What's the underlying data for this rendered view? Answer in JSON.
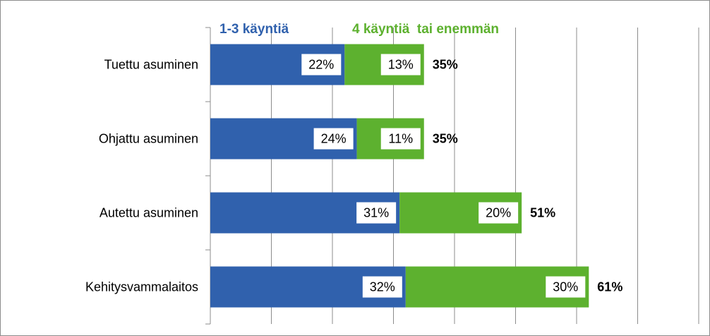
{
  "chart_data": {
    "type": "bar",
    "orientation": "horizontal",
    "stacked": true,
    "categories": [
      "Tuettu asuminen",
      "Ohjattu asuminen",
      "Autettu asuminen",
      "Kehitysvammalaitos"
    ],
    "series": [
      {
        "name": "1-3 käyntiä",
        "values": [
          22,
          24,
          31,
          32
        ],
        "labels": [
          "22%",
          "24%",
          "31%",
          "32%"
        ],
        "color": "#3061ad"
      },
      {
        "name": "4 käyntiä  tai enemmän",
        "values": [
          13,
          11,
          20,
          30
        ],
        "labels": [
          "13%",
          "11%",
          "20%",
          "30%"
        ],
        "color": "#5db12f"
      }
    ],
    "totals": [
      "35%",
      "35%",
      "51%",
      "61%"
    ],
    "xlim": [
      0,
      80
    ],
    "grid": true,
    "legend_position": "top"
  }
}
